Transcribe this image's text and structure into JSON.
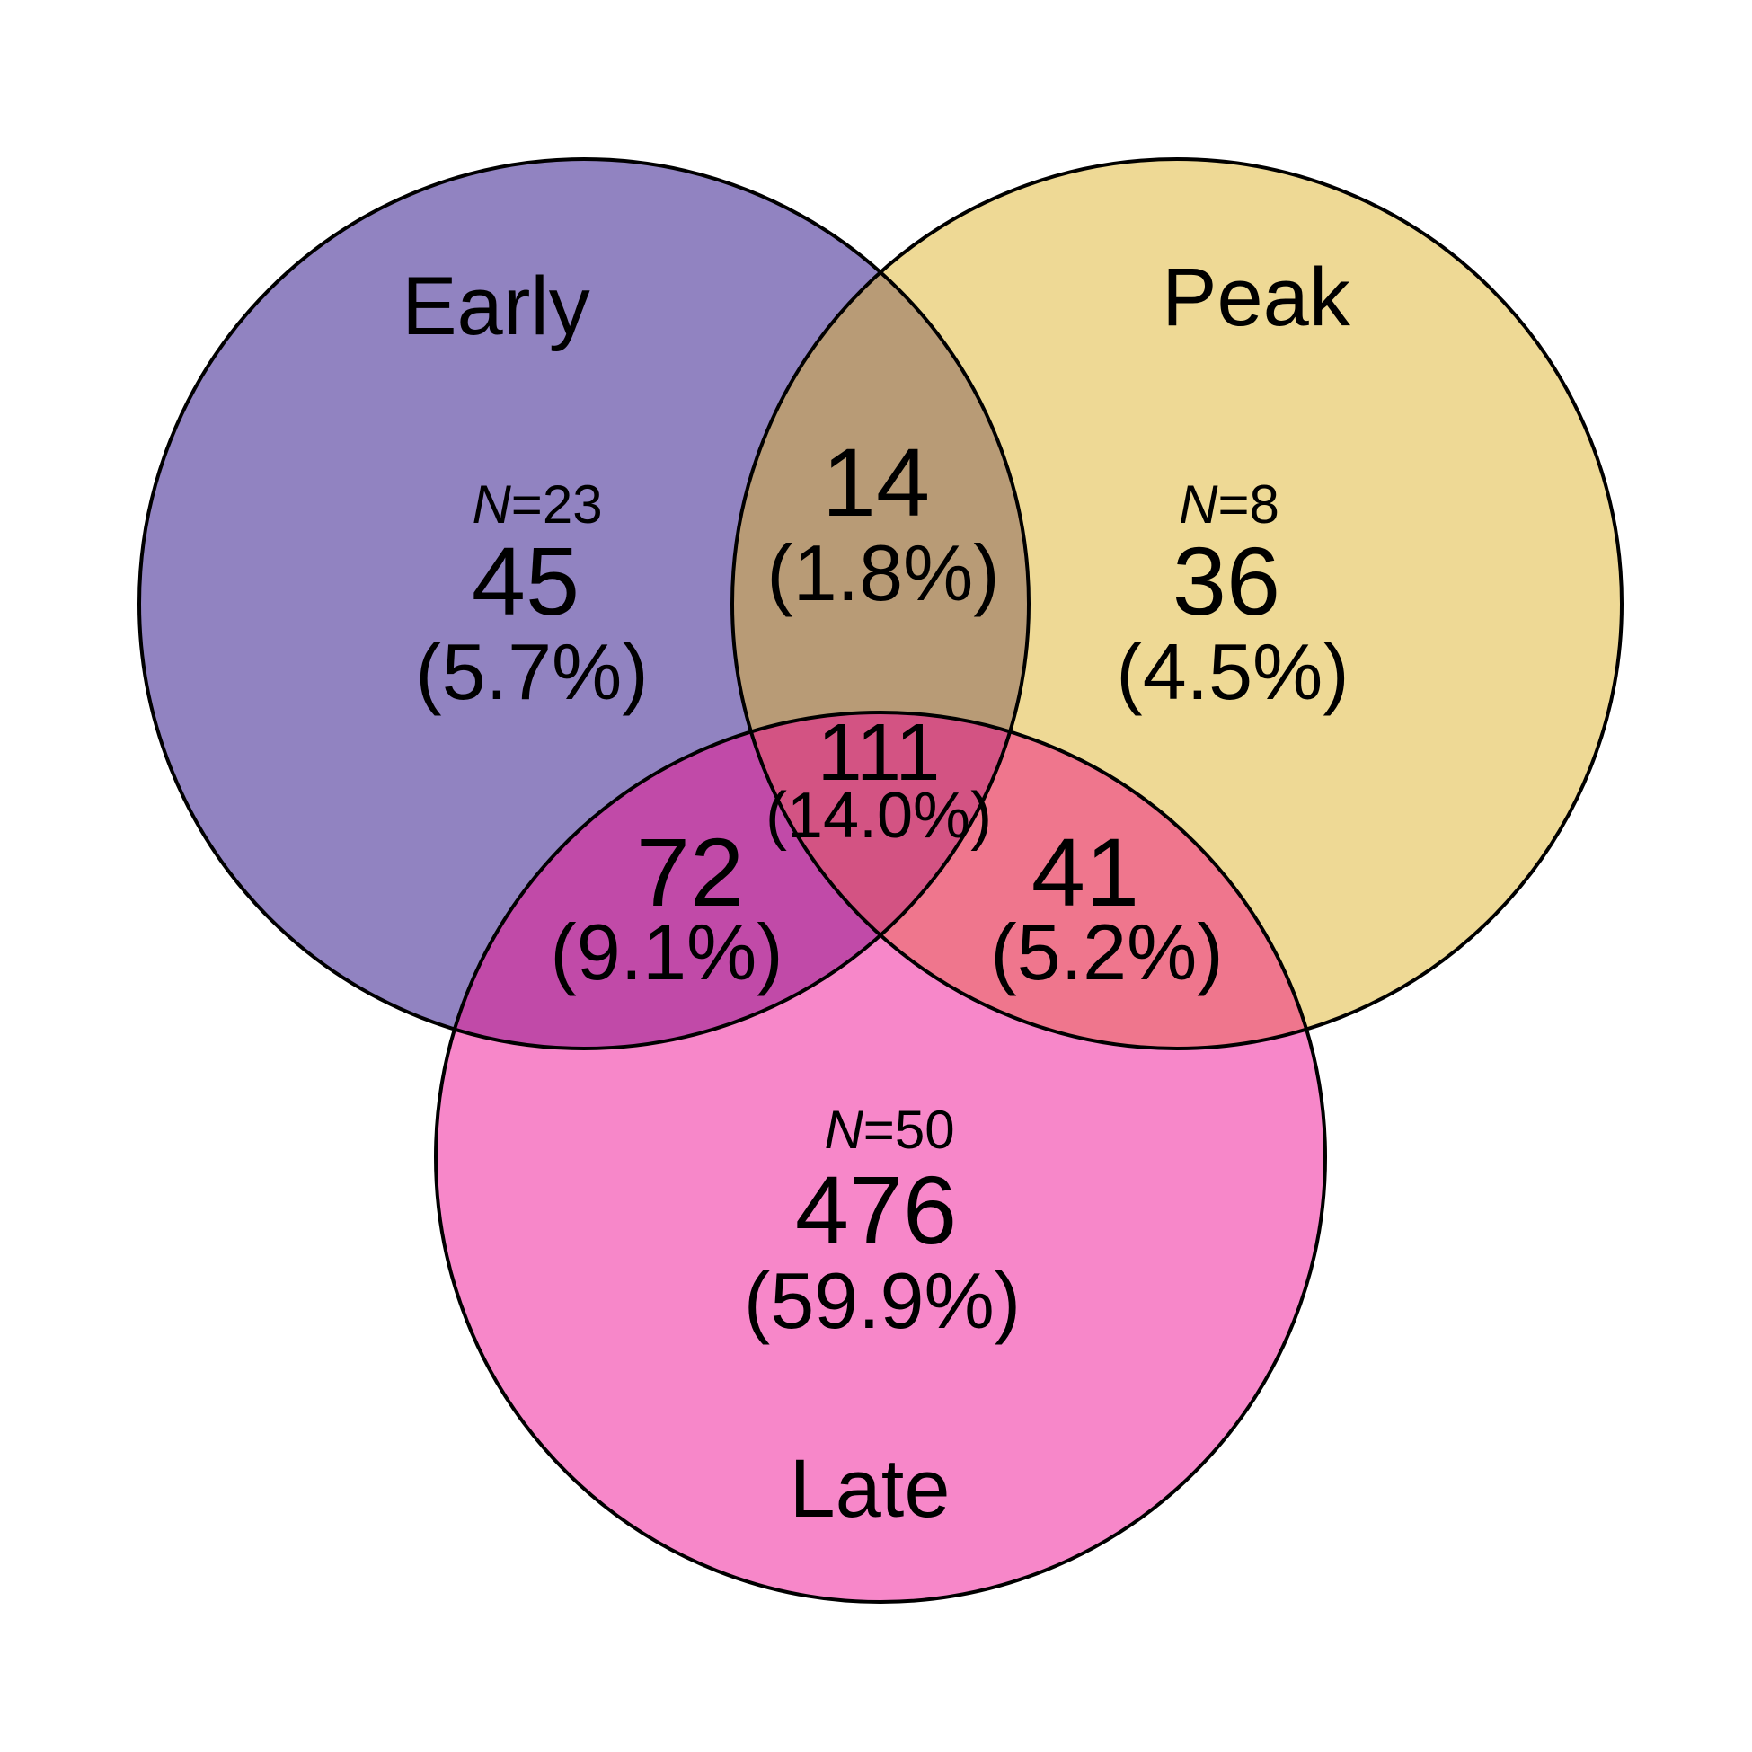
{
  "sets": [
    {
      "key": "early",
      "name": "Early",
      "color": "#9183c1"
    },
    {
      "key": "peak",
      "name": "Peak",
      "color": "#eed995"
    },
    {
      "key": "late",
      "name": "Late",
      "color": "#f787c9"
    }
  ],
  "overlap_colors": {
    "early_peak": "#b89b76",
    "early_late": "#c14aa8",
    "peak_late": "#ef768d",
    "all": "#d35383"
  },
  "regions": {
    "early_only": {
      "n_prefix": "N",
      "n_value": "=23",
      "count": "45",
      "percent": "(5.7%)"
    },
    "peak_only": {
      "n_prefix": "N",
      "n_value": "=8",
      "count": "36",
      "percent": "(4.5%)"
    },
    "late_only": {
      "n_prefix": "N",
      "n_value": "=50",
      "count": "476",
      "percent": "(59.9%)"
    },
    "early_peak": {
      "count": "14",
      "percent": "(1.8%)"
    },
    "early_late": {
      "count": "72",
      "percent": "(9.1%)"
    },
    "peak_late": {
      "count": "41",
      "percent": "(5.2%)"
    },
    "all": {
      "count": "111",
      "percent": "(14.0%)"
    }
  }
}
